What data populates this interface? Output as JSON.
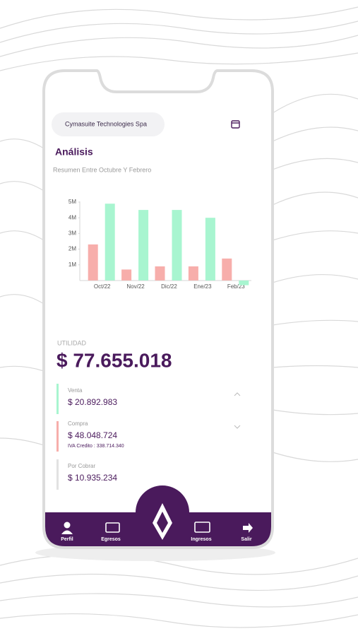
{
  "company": "Cymasuite Technologies Spa",
  "title": "Análisis",
  "subtitle": "Resumen Entre Octubre Y Febrero",
  "chart_data": {
    "type": "bar",
    "categories": [
      "Oct/22",
      "Nov/22",
      "Dic/22",
      "Ene/23",
      "Feb/23"
    ],
    "series": [
      {
        "color": "#f7aeab",
        "values": [
          2300000,
          700000,
          900000,
          900000,
          1400000
        ]
      },
      {
        "color": "#a8f5d0",
        "values": [
          4900000,
          4500000,
          4500000,
          4000000,
          -300000
        ]
      }
    ],
    "ylim": [
      -500000,
      5000000
    ],
    "yticks": [
      {
        "value": 1000000,
        "label": "1M"
      },
      {
        "value": 2000000,
        "label": "2M"
      },
      {
        "value": 3000000,
        "label": "3M"
      },
      {
        "value": 4000000,
        "label": "4M"
      },
      {
        "value": 5000000,
        "label": "5M"
      }
    ]
  },
  "summary": {
    "label": "UTILIDAD",
    "amount": "$ 77.655.018"
  },
  "items": [
    {
      "label": "Venta",
      "amount": "$ 20.892.983"
    },
    {
      "label": "Compra",
      "amount": "$ 48.048.724",
      "note": "IVA Credito : 338.714.340"
    },
    {
      "label": "Por Cobrar",
      "amount": "$ 10.935.234"
    }
  ],
  "nav": [
    "Perfil",
    "Egresos",
    "Ingresos",
    "Salir"
  ]
}
